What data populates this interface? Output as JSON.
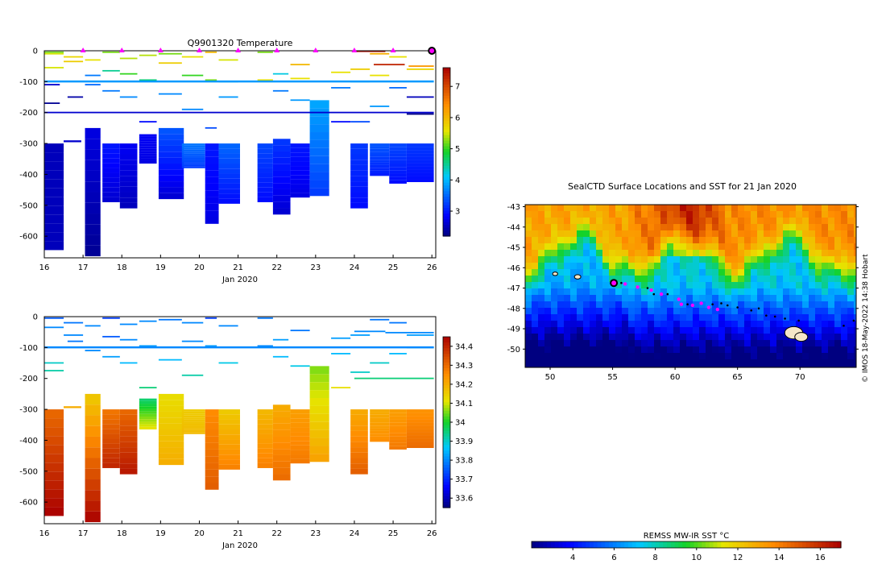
{
  "chart_data": [
    {
      "type": "heatmap",
      "title": "Q9901320  Temperature",
      "xlabel": "Jan 2020",
      "ylabel": "",
      "x_ticks": [
        "16",
        "17",
        "18",
        "19",
        "20",
        "21",
        "22",
        "23",
        "24",
        "25",
        "26"
      ],
      "y_ticks": [
        "0",
        "-100",
        "-200",
        "-300",
        "-400",
        "-500",
        "-600"
      ],
      "xlim": [
        16,
        26.1
      ],
      "ylim": [
        -670,
        0
      ],
      "colorbar_range": [
        2.2,
        7.6
      ],
      "colorbar_ticks": [
        "3",
        "4",
        "5",
        "6",
        "7"
      ],
      "surface_markers": [
        17,
        18,
        19,
        20,
        21,
        22,
        23,
        24,
        25
      ],
      "current_position_day": 26,
      "profiles": [
        {
          "t": 16.0,
          "w": 0.5,
          "deep_top": -300,
          "bottom": -645,
          "deep": [
            2.5,
            2.5
          ]
        },
        {
          "t": 16.5,
          "w": 0.45,
          "deep_top": -290,
          "bottom": -295,
          "deep": [
            2.6,
            2.6
          ]
        },
        {
          "t": 17.05,
          "w": 0.4,
          "deep_top": -250,
          "bottom": -665,
          "deep": [
            2.7,
            2.3
          ]
        },
        {
          "t": 17.5,
          "w": 0.45,
          "deep_top": -300,
          "bottom": -490,
          "deep": [
            3.0,
            2.6
          ]
        },
        {
          "t": 17.95,
          "w": 0.45,
          "deep_top": -300,
          "bottom": -510,
          "deep": [
            2.8,
            2.5
          ]
        },
        {
          "t": 18.45,
          "w": 0.45,
          "deep_top": -270,
          "bottom": -365,
          "deep": [
            2.8,
            2.7
          ]
        },
        {
          "t": 18.95,
          "w": 0.65,
          "deep_top": -250,
          "bottom": -480,
          "deep": [
            3.4,
            2.6
          ]
        },
        {
          "t": 19.55,
          "w": 0.6,
          "deep_top": -300,
          "bottom": -380,
          "deep": [
            3.6,
            3.2
          ]
        },
        {
          "t": 20.15,
          "w": 0.35,
          "deep_top": -300,
          "bottom": -560,
          "deep": [
            3.0,
            2.7
          ]
        },
        {
          "t": 20.5,
          "w": 0.55,
          "deep_top": -300,
          "bottom": -495,
          "deep": [
            3.5,
            2.9
          ]
        },
        {
          "t": 21.5,
          "w": 0.4,
          "deep_top": -300,
          "bottom": -490,
          "deep": [
            3.3,
            2.9
          ]
        },
        {
          "t": 21.9,
          "w": 0.45,
          "deep_top": -285,
          "bottom": -530,
          "deep": [
            3.2,
            2.6
          ]
        },
        {
          "t": 22.35,
          "w": 0.5,
          "deep_top": -300,
          "bottom": -475,
          "deep": [
            3.0,
            2.7
          ]
        },
        {
          "t": 22.85,
          "w": 0.5,
          "deep_top": -160,
          "bottom": -470,
          "deep": [
            3.9,
            3.2
          ]
        },
        {
          "t": 23.9,
          "w": 0.45,
          "deep_top": -300,
          "bottom": -510,
          "deep": [
            3.2,
            2.9
          ]
        },
        {
          "t": 24.4,
          "w": 0.5,
          "deep_top": -300,
          "bottom": -405,
          "deep": [
            3.4,
            3.0
          ]
        },
        {
          "t": 24.9,
          "w": 0.45,
          "deep_top": -300,
          "bottom": -430,
          "deep": [
            3.3,
            2.9
          ]
        },
        {
          "t": 25.35,
          "w": 0.7,
          "deep_top": -300,
          "bottom": -425,
          "deep": [
            3.2,
            2.9
          ]
        }
      ],
      "upper_segments": [
        [
          16.0,
          16.5,
          -5,
          5.2
        ],
        [
          16.0,
          16.5,
          -10,
          5.5
        ],
        [
          16.5,
          17.0,
          -20,
          5.7
        ],
        [
          16.5,
          17.0,
          -35,
          5.8
        ],
        [
          16.0,
          16.5,
          -55,
          5.5
        ],
        [
          16.0,
          16.4,
          -110,
          2.6
        ],
        [
          16.0,
          16.4,
          -170,
          2.3
        ],
        [
          16.6,
          17.0,
          -150,
          2.4
        ],
        [
          17.05,
          17.45,
          -30,
          5.6
        ],
        [
          17.05,
          17.45,
          -80,
          3.6
        ],
        [
          17.05,
          17.45,
          -110,
          3.5
        ],
        [
          17.5,
          17.95,
          -5,
          5.2
        ],
        [
          17.5,
          17.95,
          -65,
          4.5
        ],
        [
          17.5,
          17.95,
          -130,
          3.6
        ],
        [
          17.95,
          18.4,
          -25,
          5.4
        ],
        [
          17.95,
          18.4,
          -75,
          5.0
        ],
        [
          17.95,
          18.4,
          -150,
          3.7
        ],
        [
          18.45,
          18.9,
          -15,
          5.4
        ],
        [
          18.45,
          18.9,
          -95,
          4.6
        ],
        [
          18.45,
          18.9,
          -230,
          2.9
        ],
        [
          18.95,
          19.55,
          -10,
          5.2
        ],
        [
          18.95,
          19.55,
          -40,
          5.8
        ],
        [
          18.95,
          19.55,
          -140,
          3.7
        ],
        [
          19.55,
          20.1,
          -20,
          5.6
        ],
        [
          19.55,
          20.1,
          -80,
          5.0
        ],
        [
          19.55,
          20.1,
          -190,
          3.7
        ],
        [
          20.15,
          20.45,
          -5,
          6.0
        ],
        [
          20.15,
          20.45,
          -95,
          5.2
        ],
        [
          20.15,
          20.45,
          -250,
          3.3
        ],
        [
          20.5,
          21.0,
          -30,
          5.5
        ],
        [
          20.5,
          21.0,
          -100,
          4.5
        ],
        [
          20.5,
          21.0,
          -150,
          3.8
        ],
        [
          21.5,
          21.9,
          -5,
          5.2
        ],
        [
          21.5,
          21.9,
          -95,
          5.6
        ],
        [
          21.9,
          22.3,
          -75,
          4.2
        ],
        [
          21.9,
          22.3,
          -130,
          3.6
        ],
        [
          22.35,
          22.85,
          -45,
          6.0
        ],
        [
          22.35,
          22.85,
          -90,
          5.6
        ],
        [
          22.35,
          22.85,
          -160,
          3.8
        ],
        [
          23.4,
          23.9,
          -70,
          5.6
        ],
        [
          23.4,
          23.9,
          -120,
          3.6
        ],
        [
          23.4,
          23.9,
          -230,
          2.9
        ],
        [
          23.9,
          24.4,
          -60,
          5.8
        ],
        [
          23.9,
          24.4,
          -100,
          4.3
        ],
        [
          23.9,
          24.4,
          -230,
          3.3
        ],
        [
          24.4,
          24.9,
          -10,
          6.1
        ],
        [
          24.4,
          24.9,
          -80,
          5.6
        ],
        [
          24.4,
          24.9,
          -180,
          3.8
        ],
        [
          24.9,
          25.35,
          -20,
          5.6
        ],
        [
          24.9,
          25.35,
          -120,
          3.5
        ],
        [
          25.35,
          26.05,
          -60,
          5.7
        ],
        [
          25.35,
          26.05,
          -150,
          2.5
        ],
        [
          25.35,
          26.05,
          -205,
          2.2
        ],
        [
          24.5,
          25.3,
          -45,
          7.3
        ],
        [
          25.4,
          26.05,
          -50,
          6.3
        ],
        [
          24.0,
          24.8,
          -2,
          7.5
        ],
        [
          16.0,
          26.05,
          -200,
          2.6
        ]
      ],
      "thermocline": [
        16.0,
        26.05,
        -100,
        3.8
      ]
    },
    {
      "type": "heatmap",
      "title": "",
      "xlabel": "Jan 2020",
      "ylabel": "",
      "x_ticks": [
        "16",
        "17",
        "18",
        "19",
        "20",
        "21",
        "22",
        "23",
        "24",
        "25",
        "26"
      ],
      "y_ticks": [
        "0",
        "-100",
        "-200",
        "-300",
        "-400",
        "-500",
        "-600"
      ],
      "xlim": [
        16,
        26.1
      ],
      "ylim": [
        -670,
        0
      ],
      "colorbar_range": [
        33.55,
        34.45
      ],
      "colorbar_ticks": [
        "33.6",
        "33.7",
        "33.8",
        "33.9",
        "34",
        "34.1",
        "34.2",
        "34.3",
        "34.4"
      ],
      "profiles": [
        {
          "t": 16.0,
          "w": 0.5,
          "deep_top": -300,
          "bottom": -645,
          "deep": [
            34.3,
            34.45
          ]
        },
        {
          "t": 16.5,
          "w": 0.45,
          "deep_top": -290,
          "bottom": -295,
          "deep": [
            34.2,
            34.2
          ]
        },
        {
          "t": 17.05,
          "w": 0.4,
          "deep_top": -250,
          "bottom": -665,
          "deep": [
            34.15,
            34.45
          ]
        },
        {
          "t": 17.5,
          "w": 0.45,
          "deep_top": -300,
          "bottom": -490,
          "deep": [
            34.28,
            34.4
          ]
        },
        {
          "t": 17.95,
          "w": 0.45,
          "deep_top": -300,
          "bottom": -510,
          "deep": [
            34.3,
            34.42
          ]
        },
        {
          "t": 18.45,
          "w": 0.45,
          "deep_top": -265,
          "bottom": -365,
          "deep": [
            33.95,
            34.12
          ]
        },
        {
          "t": 18.95,
          "w": 0.65,
          "deep_top": -250,
          "bottom": -480,
          "deep": [
            34.12,
            34.2
          ]
        },
        {
          "t": 19.55,
          "w": 0.6,
          "deep_top": -300,
          "bottom": -380,
          "deep": [
            34.15,
            34.18
          ]
        },
        {
          "t": 20.15,
          "w": 0.35,
          "deep_top": -300,
          "bottom": -560,
          "deep": [
            34.25,
            34.32
          ]
        },
        {
          "t": 20.5,
          "w": 0.55,
          "deep_top": -300,
          "bottom": -495,
          "deep": [
            34.15,
            34.27
          ]
        },
        {
          "t": 21.5,
          "w": 0.4,
          "deep_top": -300,
          "bottom": -490,
          "deep": [
            34.18,
            34.27
          ]
        },
        {
          "t": 21.9,
          "w": 0.45,
          "deep_top": -285,
          "bottom": -530,
          "deep": [
            34.2,
            34.3
          ]
        },
        {
          "t": 22.35,
          "w": 0.5,
          "deep_top": -300,
          "bottom": -475,
          "deep": [
            34.22,
            34.28
          ]
        },
        {
          "t": 22.85,
          "w": 0.5,
          "deep_top": -160,
          "bottom": -470,
          "deep": [
            34.05,
            34.22
          ]
        },
        {
          "t": 23.9,
          "w": 0.45,
          "deep_top": -300,
          "bottom": -510,
          "deep": [
            34.2,
            34.32
          ]
        },
        {
          "t": 24.4,
          "w": 0.5,
          "deep_top": -300,
          "bottom": -405,
          "deep": [
            34.2,
            34.25
          ]
        },
        {
          "t": 24.9,
          "w": 0.45,
          "deep_top": -300,
          "bottom": -430,
          "deep": [
            34.22,
            34.28
          ]
        },
        {
          "t": 25.35,
          "w": 0.7,
          "deep_top": -300,
          "bottom": -425,
          "deep": [
            34.24,
            34.3
          ]
        }
      ],
      "upper_segments": [
        [
          16.0,
          16.5,
          -5,
          33.75
        ],
        [
          16.0,
          16.5,
          -35,
          33.8
        ],
        [
          16.5,
          17.0,
          -20,
          33.78
        ],
        [
          16.5,
          17.0,
          -60,
          33.8
        ],
        [
          16.0,
          16.5,
          -150,
          33.9
        ],
        [
          16.0,
          16.5,
          -175,
          33.92
        ],
        [
          16.6,
          17.0,
          -80,
          33.78
        ],
        [
          17.05,
          17.45,
          -30,
          33.8
        ],
        [
          17.05,
          17.45,
          -110,
          33.8
        ],
        [
          17.5,
          17.95,
          -5,
          33.72
        ],
        [
          17.5,
          17.95,
          -65,
          33.75
        ],
        [
          17.5,
          17.95,
          -130,
          33.82
        ],
        [
          17.95,
          18.4,
          -25,
          33.8
        ],
        [
          17.95,
          18.4,
          -75,
          33.8
        ],
        [
          17.95,
          18.4,
          -150,
          33.85
        ],
        [
          18.45,
          18.9,
          -15,
          33.8
        ],
        [
          18.45,
          18.9,
          -95,
          33.82
        ],
        [
          18.45,
          18.9,
          -230,
          33.95
        ],
        [
          18.95,
          19.55,
          -10,
          33.78
        ],
        [
          18.95,
          19.55,
          -140,
          33.85
        ],
        [
          19.55,
          20.1,
          -20,
          33.8
        ],
        [
          19.55,
          20.1,
          -80,
          33.8
        ],
        [
          19.55,
          20.1,
          -190,
          33.92
        ],
        [
          20.15,
          20.45,
          -5,
          33.72
        ],
        [
          20.15,
          20.45,
          -95,
          33.82
        ],
        [
          20.5,
          21.0,
          -30,
          33.8
        ],
        [
          20.5,
          21.0,
          -150,
          33.88
        ],
        [
          21.5,
          21.9,
          -5,
          33.78
        ],
        [
          21.5,
          21.9,
          -95,
          33.8
        ],
        [
          21.9,
          22.3,
          -75,
          33.82
        ],
        [
          21.9,
          22.3,
          -130,
          33.85
        ],
        [
          22.35,
          22.85,
          -45,
          33.78
        ],
        [
          22.35,
          22.85,
          -160,
          33.88
        ],
        [
          23.4,
          23.9,
          -70,
          33.82
        ],
        [
          23.4,
          23.9,
          -120,
          33.85
        ],
        [
          23.4,
          23.9,
          -230,
          34.12
        ],
        [
          23.9,
          24.4,
          -60,
          33.82
        ],
        [
          23.9,
          24.4,
          -180,
          33.9
        ],
        [
          24.4,
          24.9,
          -10,
          33.78
        ],
        [
          24.4,
          24.9,
          -150,
          33.9
        ],
        [
          24.9,
          25.35,
          -20,
          33.78
        ],
        [
          24.9,
          25.35,
          -120,
          33.85
        ],
        [
          25.35,
          26.05,
          -60,
          33.82
        ],
        [
          25.35,
          26.05,
          -100,
          33.95
        ],
        [
          24.0,
          26.05,
          -200,
          33.95
        ],
        [
          24.0,
          24.8,
          -48,
          33.8
        ],
        [
          24.8,
          26.05,
          -52,
          33.8
        ]
      ],
      "thermocline": [
        16.0,
        26.05,
        -100,
        33.8
      ]
    },
    {
      "type": "heatmap",
      "title": "SealCTD Surface Locations and SST for 21 Jan 2020",
      "xlabel": "",
      "ylabel": "",
      "x_ticks": [
        "50",
        "55",
        "60",
        "65",
        "70"
      ],
      "y_ticks": [
        "-43",
        "-44",
        "-45",
        "-46",
        "-47",
        "-48",
        "-49",
        "-50"
      ],
      "xlim": [
        48,
        74.5
      ],
      "ylim": [
        -50.9,
        -42.9
      ],
      "colorbar_label": "REMSS MW-IR SST °C",
      "colorbar_range": [
        2.0,
        17.0
      ],
      "colorbar_ticks": [
        "4",
        "6",
        "8",
        "10",
        "12",
        "14",
        "16"
      ],
      "current_position": [
        55.1,
        -46.75
      ],
      "magenta_track": [
        [
          55.1,
          -46.75
        ],
        [
          56.0,
          -46.8
        ],
        [
          57.0,
          -46.95
        ],
        [
          58.1,
          -47.1
        ],
        [
          58.9,
          -47.3
        ],
        [
          60.3,
          -47.55
        ],
        [
          60.5,
          -47.8
        ],
        [
          61.4,
          -47.85
        ],
        [
          62.1,
          -47.75
        ],
        [
          62.7,
          -47.95
        ],
        [
          63.4,
          -48.05
        ]
      ],
      "black_track": [
        [
          55.7,
          -46.75
        ],
        [
          57.8,
          -47.0
        ],
        [
          58.3,
          -47.3
        ],
        [
          59.4,
          -47.3
        ],
        [
          61.0,
          -47.8
        ],
        [
          63.0,
          -47.8
        ],
        [
          63.7,
          -47.75
        ],
        [
          64.2,
          -47.85
        ],
        [
          65.0,
          -47.95
        ],
        [
          66.1,
          -48.1
        ],
        [
          66.7,
          -48.0
        ],
        [
          67.3,
          -48.35
        ],
        [
          68.0,
          -48.4
        ],
        [
          68.8,
          -48.5
        ],
        [
          69.9,
          -48.6
        ],
        [
          73.5,
          -48.85
        ],
        [
          74.3,
          -48.6
        ]
      ]
    }
  ],
  "credit": "© IMOS 18-May-2022 14:38 Hobart"
}
